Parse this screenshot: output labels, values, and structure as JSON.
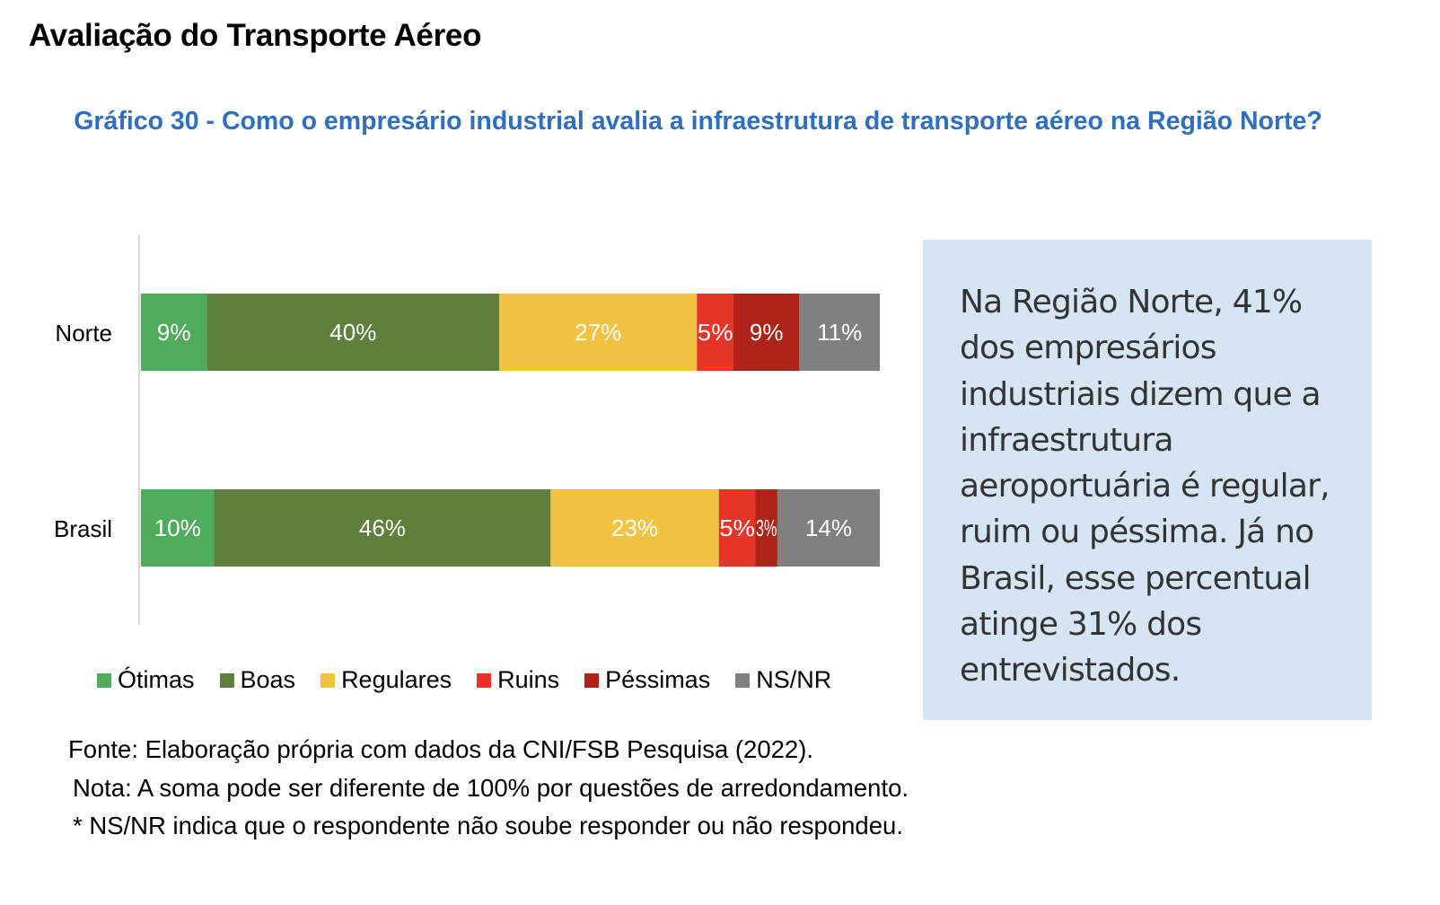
{
  "section_title": "Avaliação do Transporte Aéreo",
  "chart_data": {
    "type": "bar",
    "orientation": "horizontal",
    "stacked": true,
    "title": "Gráfico 30 - Como o empresário industrial avalia a infraestrutura de transporte aéreo na Região Norte?",
    "xlabel": "",
    "ylabel": "",
    "unit": "%",
    "categories": [
      "Norte",
      "Brasil"
    ],
    "series": [
      {
        "name": "Ótimas",
        "color": "#4fac5c",
        "values": [
          9,
          10
        ]
      },
      {
        "name": "Boas",
        "color": "#5f7f3d",
        "values": [
          40,
          46
        ]
      },
      {
        "name": "Regulares",
        "color": "#f3c243",
        "values": [
          27,
          23
        ]
      },
      {
        "name": "Ruins",
        "color": "#e63427",
        "values": [
          5,
          5
        ]
      },
      {
        "name": "Péssimas",
        "color": "#ae2318",
        "values": [
          9,
          3
        ]
      },
      {
        "name": "NS/NR",
        "color": "#808080",
        "values": [
          11,
          14
        ]
      }
    ],
    "data_labels": [
      [
        "9%",
        "40%",
        "27%",
        "5%",
        "9%",
        "11%"
      ],
      [
        "10%",
        "46%",
        "23%",
        "5%",
        "3%",
        "14%"
      ]
    ],
    "grid": false,
    "legend_position": "bottom"
  },
  "callout": {
    "lines": [
      "Na Região Norte, 41%",
      "dos empresários",
      "industriais dizem que a",
      "infraestrutura",
      "aeroportuária é regular,",
      "ruim ou péssima. Já no",
      "Brasil, esse percentual",
      "atinge 31% dos",
      "entrevistados."
    ]
  },
  "footnotes": {
    "source": "Fonte: Elaboração própria com dados da CNI/FSB Pesquisa (2022).",
    "note": "Nota: A soma pode ser diferente de 100% por questões de arredondamento.",
    "asterisk": "* NS/NR indica que o respondente não soube responder ou não respondeu."
  }
}
